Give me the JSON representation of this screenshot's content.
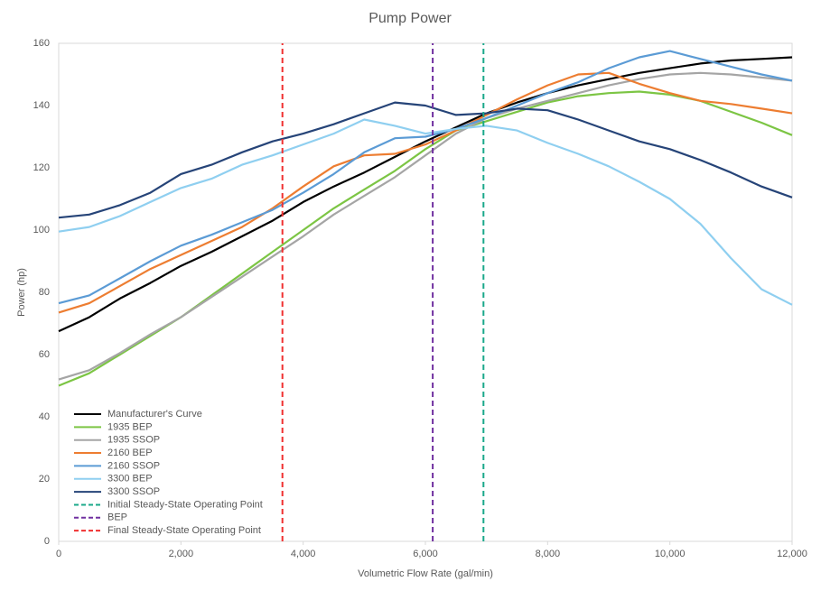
{
  "chart_data": {
    "type": "line",
    "title": "Pump Power",
    "xlabel": "Volumetric Flow Rate (gal/min)",
    "ylabel": "Power (hp)",
    "x": [
      0,
      500,
      1000,
      1500,
      2000,
      2500,
      3000,
      3500,
      4000,
      4500,
      5000,
      5500,
      6000,
      6500,
      7000,
      7500,
      8000,
      8500,
      9000,
      9500,
      10000,
      10500,
      11000,
      11500,
      12000
    ],
    "series": [
      {
        "name": "Manufacturer's Curve",
        "color": "#000000",
        "values": [
          67.5,
          72,
          78,
          83,
          88.5,
          93,
          98,
          103,
          109,
          114,
          118.5,
          123.5,
          128.5,
          133,
          137.5,
          141,
          144,
          146.5,
          148.5,
          150.5,
          152,
          153.5,
          154.5,
          155,
          155.5
        ]
      },
      {
        "name": "1935 BEP",
        "color": "#7cc544",
        "values": [
          50,
          54,
          60,
          66,
          72,
          79,
          86,
          93,
          100,
          107,
          113,
          119,
          126,
          132,
          135,
          138,
          141,
          143,
          144,
          144.5,
          143.5,
          141.5,
          138,
          134.5,
          130.5
        ]
      },
      {
        "name": "1935 SSOP",
        "color": "#a5a5a5",
        "values": [
          52,
          55,
          60.5,
          66.5,
          72,
          78.5,
          85,
          91.5,
          98,
          105,
          111,
          117,
          124,
          131,
          136,
          139,
          141.5,
          144,
          146.5,
          148.5,
          150,
          150.5,
          150,
          149,
          148
        ]
      },
      {
        "name": "2160 BEP",
        "color": "#ed7d31",
        "values": [
          73.5,
          76.5,
          82,
          87.5,
          92,
          96.5,
          101,
          107,
          114,
          120.5,
          124,
          124.5,
          127.5,
          132,
          137,
          142,
          146.5,
          150,
          150.5,
          147,
          144,
          141.5,
          140.5,
          139,
          137.5
        ]
      },
      {
        "name": "2160 SSOP",
        "color": "#5b9bd5",
        "values": [
          76.5,
          79,
          84.5,
          90,
          95,
          98.5,
          102.5,
          106.5,
          112,
          118,
          125,
          129.5,
          130,
          132.5,
          136,
          140,
          144,
          147.5,
          152,
          155.5,
          157.5,
          155,
          152.5,
          150,
          148
        ]
      },
      {
        "name": "3300 BEP",
        "color": "#8fcff0",
        "values": [
          99.5,
          101,
          104.5,
          109,
          113.5,
          116.5,
          121,
          124,
          127.5,
          131,
          135.5,
          133.5,
          131,
          132.5,
          133.5,
          132,
          128,
          124.5,
          120.5,
          115.5,
          110,
          102,
          91,
          81,
          76
        ]
      },
      {
        "name": "3300 SSOP",
        "color": "#264478",
        "values": [
          104,
          105,
          108,
          112,
          118,
          121,
          125,
          128.5,
          131,
          134,
          137.5,
          141,
          140,
          137,
          137.5,
          139,
          138.5,
          135.5,
          132,
          128.5,
          126,
          122.5,
          118.5,
          114,
          110.5
        ]
      },
      {
        "name": "Initial Steady-State Operating Point",
        "color": "#1aa88a",
        "dashed": true,
        "x": [
          6950,
          6950
        ],
        "values": [
          0,
          160
        ]
      },
      {
        "name": "BEP",
        "color": "#7030a0",
        "dashed": true,
        "x": [
          6120,
          6120
        ],
        "values": [
          0,
          160
        ]
      },
      {
        "name": "Final Steady-State Operating Point",
        "color": "#f03030",
        "dashed": true,
        "x": [
          3660,
          3660
        ],
        "values": [
          0,
          160
        ]
      }
    ],
    "xlim": [
      0,
      12000
    ],
    "xticks": [
      0,
      {
        "value": 2000,
        "label": "2,000"
      },
      {
        "value": 4000,
        "label": "4,000"
      },
      {
        "value": 6000,
        "label": "6,000"
      },
      {
        "value": 8000,
        "label": "8,000"
      },
      {
        "value": 10000,
        "label": "10,000"
      },
      {
        "value": 12000,
        "label": "12,000"
      }
    ],
    "ylim": [
      0,
      160
    ],
    "yticks": [
      0,
      20,
      40,
      60,
      80,
      100,
      120,
      140,
      160
    ],
    "grid": false,
    "legend": "lower-left"
  }
}
